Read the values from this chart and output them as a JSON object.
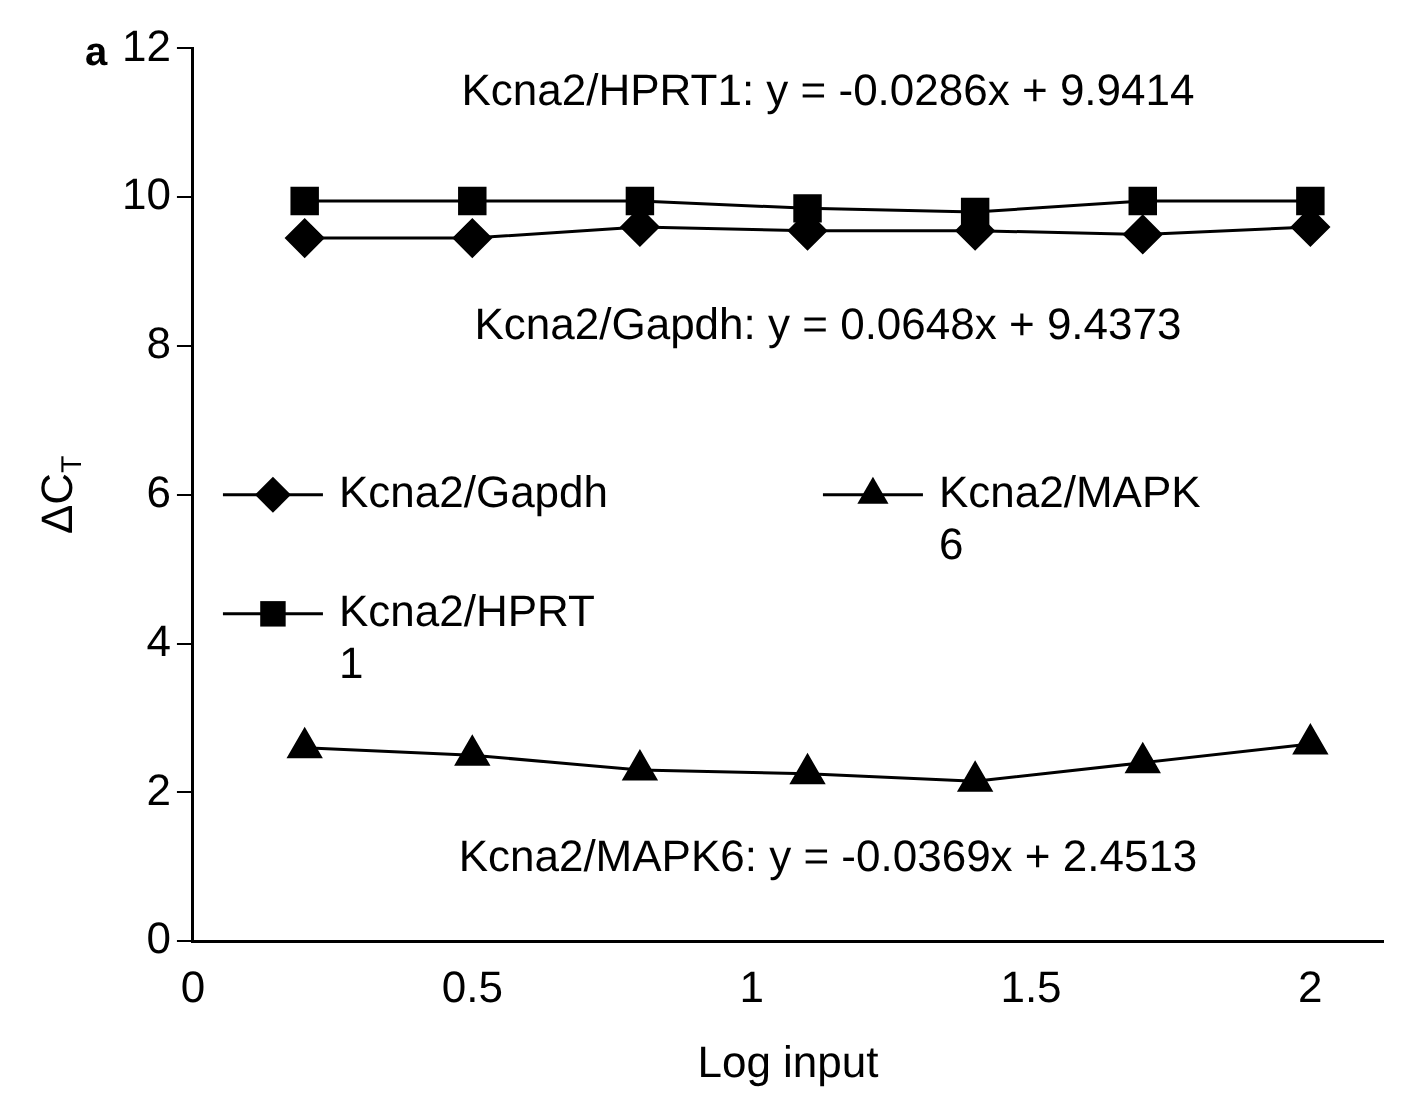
{
  "chart_data": {
    "type": "line",
    "xlabel": "Log input",
    "ylabel": "ΔC$_{T}$",
    "x": [
      0.2,
      0.5,
      0.8,
      1.1,
      1.4,
      1.7,
      2.0
    ],
    "series": [
      {
        "name": "Kcna2/Gapdh",
        "color": "#000000",
        "marker": "diamond",
        "values": [
          9.45,
          9.45,
          9.6,
          9.55,
          9.55,
          9.5,
          9.6
        ]
      },
      {
        "name": "Kcna2/HPRT1",
        "color": "#000000",
        "marker": "square",
        "values": [
          9.95,
          9.95,
          9.95,
          9.85,
          9.8,
          9.95,
          9.95
        ]
      },
      {
        "name": "Kcna2/MAPK6",
        "color": "#000000",
        "marker": "triangle",
        "values": [
          2.6,
          2.5,
          2.3,
          2.25,
          2.15,
          2.4,
          2.65
        ]
      }
    ],
    "xlim": [
      0,
      2.13
    ],
    "xticks": [
      0,
      0.5,
      1,
      1.5,
      2
    ],
    "ylim": [
      0,
      12
    ],
    "yticks": [
      0,
      2,
      4,
      6,
      8,
      10,
      12
    ],
    "grid": false,
    "legend": "left",
    "line_style": "solid",
    "annotations": [
      "a",
      "Kcna2/HPRT1: y = -0.0286x + 9.9414",
      "Kcna2/Gapdh: y = 0.0648x + 9.4373",
      "Kcna2/MAPK6: y = -0.0369x + 2.4513"
    ]
  }
}
